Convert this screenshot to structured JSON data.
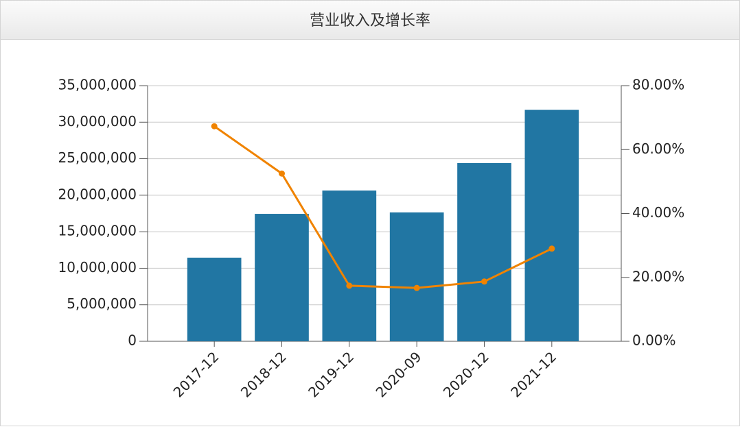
{
  "chart_data": {
    "type": "bar-line",
    "title": "营业收入及增长率",
    "categories": [
      "2017-12",
      "2018-12",
      "2019-12",
      "2020-09",
      "2020-12",
      "2021-12"
    ],
    "series": [
      {
        "type": "bar",
        "color": "#2176a3",
        "values": [
          11450000,
          17450000,
          20640000,
          17640000,
          24400000,
          31700000
        ]
      },
      {
        "type": "line",
        "color": "#f08300",
        "axis": "y2",
        "values": [
          67.3,
          52.5,
          17.4,
          16.7,
          18.7,
          29.0
        ]
      }
    ],
    "ylim": [
      0,
      35000000
    ],
    "yticks": [
      0,
      {
        "value": 5000000,
        "label": "5,000,000"
      },
      {
        "value": 10000000,
        "label": "10,000,000"
      },
      {
        "value": 15000000,
        "label": "15,000,000"
      },
      {
        "value": 20000000,
        "label": "20,000,000"
      },
      {
        "value": 25000000,
        "label": "25,000,000"
      },
      {
        "value": 30000000,
        "label": "30,000,000"
      },
      {
        "value": 35000000,
        "label": "35,000,000"
      }
    ],
    "y2lim": [
      0,
      80
    ],
    "y2ticks": [
      {
        "value": 0,
        "label": "0.00%"
      },
      {
        "value": 20,
        "label": "20.00%"
      },
      {
        "value": 40,
        "label": "40.00%"
      },
      {
        "value": 60,
        "label": "60.00%"
      },
      {
        "value": 80,
        "label": "80.00%"
      }
    ],
    "grid": true
  }
}
